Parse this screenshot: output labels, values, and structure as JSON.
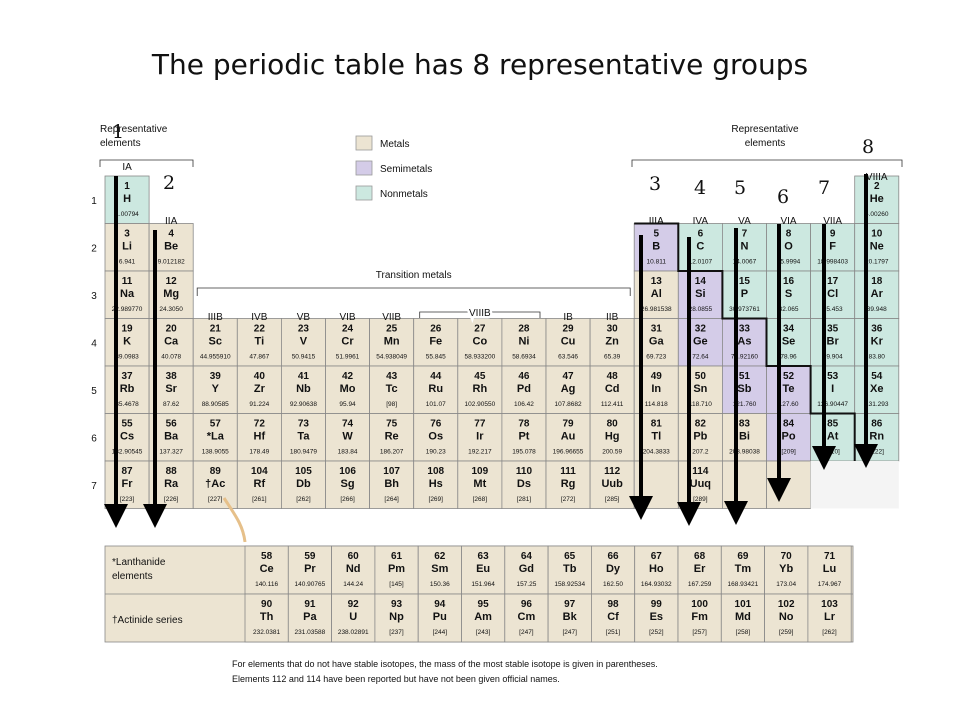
{
  "title": "The periodic table has 8 representative groups",
  "rep_elements_label_left": [
    "Representative",
    "elements"
  ],
  "rep_elements_label_right": [
    "Representative",
    "elements"
  ],
  "transition_metals_label": "Transition metals",
  "legend": [
    {
      "label": "Metals",
      "color": "#ece4d2"
    },
    {
      "label": "Semimetals",
      "color": "#d4cce8"
    },
    {
      "label": "Nonmetals",
      "color": "#cce8e0"
    }
  ],
  "group_headers": {
    "IA": "IA",
    "IIA": "IIA",
    "IIIA": "IIIA",
    "IVA": "IVA",
    "VA": "VA",
    "VIA": "VIA",
    "VIIA": "VIIA",
    "VIIIA": "VIIIA",
    "IIIB": "IIIB",
    "IVB": "IVB",
    "VB": "VB",
    "VIB": "VIB",
    "VIIB": "VIIB",
    "VIIIB": "VIIIB",
    "IB": "IB",
    "IIB": "IIB"
  },
  "period_labels": [
    "1",
    "2",
    "3",
    "4",
    "5",
    "6",
    "7"
  ],
  "group_markers": [
    "1",
    "2",
    "3",
    "4",
    "5",
    "6",
    "7",
    "8"
  ],
  "elements": [
    {
      "n": "1",
      "s": "H",
      "m": "1.00794",
      "c": "non"
    },
    {
      "n": "2",
      "s": "He",
      "m": "4.00260",
      "c": "non"
    },
    {
      "n": "3",
      "s": "Li",
      "m": "6.941",
      "c": "met"
    },
    {
      "n": "4",
      "s": "Be",
      "m": "9.012182",
      "c": "met"
    },
    {
      "n": "5",
      "s": "B",
      "m": "10.811",
      "c": "semi"
    },
    {
      "n": "6",
      "s": "C",
      "m": "12.0107",
      "c": "non"
    },
    {
      "n": "7",
      "s": "N",
      "m": "14.0067",
      "c": "non"
    },
    {
      "n": "8",
      "s": "O",
      "m": "15.9994",
      "c": "non"
    },
    {
      "n": "9",
      "s": "F",
      "m": "18.998403",
      "c": "non"
    },
    {
      "n": "10",
      "s": "Ne",
      "m": "20.1797",
      "c": "non"
    },
    {
      "n": "11",
      "s": "Na",
      "m": "22.989770",
      "c": "met"
    },
    {
      "n": "12",
      "s": "Mg",
      "m": "24.3050",
      "c": "met"
    },
    {
      "n": "13",
      "s": "Al",
      "m": "26.981538",
      "c": "met"
    },
    {
      "n": "14",
      "s": "Si",
      "m": "28.0855",
      "c": "semi"
    },
    {
      "n": "15",
      "s": "P",
      "m": "30.973761",
      "c": "non"
    },
    {
      "n": "16",
      "s": "S",
      "m": "32.065",
      "c": "non"
    },
    {
      "n": "17",
      "s": "Cl",
      "m": "35.453",
      "c": "non"
    },
    {
      "n": "18",
      "s": "Ar",
      "m": "39.948",
      "c": "non"
    },
    {
      "n": "19",
      "s": "K",
      "m": "39.0983",
      "c": "met"
    },
    {
      "n": "20",
      "s": "Ca",
      "m": "40.078",
      "c": "met"
    },
    {
      "n": "21",
      "s": "Sc",
      "m": "44.955910",
      "c": "met"
    },
    {
      "n": "22",
      "s": "Ti",
      "m": "47.867",
      "c": "met"
    },
    {
      "n": "23",
      "s": "V",
      "m": "50.9415",
      "c": "met"
    },
    {
      "n": "24",
      "s": "Cr",
      "m": "51.9961",
      "c": "met"
    },
    {
      "n": "25",
      "s": "Mn",
      "m": "54.938049",
      "c": "met"
    },
    {
      "n": "26",
      "s": "Fe",
      "m": "55.845",
      "c": "met"
    },
    {
      "n": "27",
      "s": "Co",
      "m": "58.933200",
      "c": "met"
    },
    {
      "n": "28",
      "s": "Ni",
      "m": "58.6934",
      "c": "met"
    },
    {
      "n": "29",
      "s": "Cu",
      "m": "63.546",
      "c": "met"
    },
    {
      "n": "30",
      "s": "Zn",
      "m": "65.39",
      "c": "met"
    },
    {
      "n": "31",
      "s": "Ga",
      "m": "69.723",
      "c": "met"
    },
    {
      "n": "32",
      "s": "Ge",
      "m": "72.64",
      "c": "semi"
    },
    {
      "n": "33",
      "s": "As",
      "m": "74.92160",
      "c": "semi"
    },
    {
      "n": "34",
      "s": "Se",
      "m": "78.96",
      "c": "non"
    },
    {
      "n": "35",
      "s": "Br",
      "m": "79.904",
      "c": "non"
    },
    {
      "n": "36",
      "s": "Kr",
      "m": "83.80",
      "c": "non"
    },
    {
      "n": "37",
      "s": "Rb",
      "m": "85.4678",
      "c": "met"
    },
    {
      "n": "38",
      "s": "Sr",
      "m": "87.62",
      "c": "met"
    },
    {
      "n": "39",
      "s": "Y",
      "m": "88.90585",
      "c": "met"
    },
    {
      "n": "40",
      "s": "Zr",
      "m": "91.224",
      "c": "met"
    },
    {
      "n": "41",
      "s": "Nb",
      "m": "92.90638",
      "c": "met"
    },
    {
      "n": "42",
      "s": "Mo",
      "m": "95.94",
      "c": "met"
    },
    {
      "n": "43",
      "s": "Tc",
      "m": "[98]",
      "c": "met"
    },
    {
      "n": "44",
      "s": "Ru",
      "m": "101.07",
      "c": "met"
    },
    {
      "n": "45",
      "s": "Rh",
      "m": "102.90550",
      "c": "met"
    },
    {
      "n": "46",
      "s": "Pd",
      "m": "106.42",
      "c": "met"
    },
    {
      "n": "47",
      "s": "Ag",
      "m": "107.8682",
      "c": "met"
    },
    {
      "n": "48",
      "s": "Cd",
      "m": "112.411",
      "c": "met"
    },
    {
      "n": "49",
      "s": "In",
      "m": "114.818",
      "c": "met"
    },
    {
      "n": "50",
      "s": "Sn",
      "m": "118.710",
      "c": "met"
    },
    {
      "n": "51",
      "s": "Sb",
      "m": "121.760",
      "c": "semi"
    },
    {
      "n": "52",
      "s": "Te",
      "m": "127.60",
      "c": "semi"
    },
    {
      "n": "53",
      "s": "I",
      "m": "126.90447",
      "c": "non"
    },
    {
      "n": "54",
      "s": "Xe",
      "m": "131.293",
      "c": "non"
    },
    {
      "n": "55",
      "s": "Cs",
      "m": "132.90545",
      "c": "met"
    },
    {
      "n": "56",
      "s": "Ba",
      "m": "137.327",
      "c": "met"
    },
    {
      "n": "57",
      "s": "*La",
      "m": "138.9055",
      "c": "met"
    },
    {
      "n": "72",
      "s": "Hf",
      "m": "178.49",
      "c": "met"
    },
    {
      "n": "73",
      "s": "Ta",
      "m": "180.9479",
      "c": "met"
    },
    {
      "n": "74",
      "s": "W",
      "m": "183.84",
      "c": "met"
    },
    {
      "n": "75",
      "s": "Re",
      "m": "186.207",
      "c": "met"
    },
    {
      "n": "76",
      "s": "Os",
      "m": "190.23",
      "c": "met"
    },
    {
      "n": "77",
      "s": "Ir",
      "m": "192.217",
      "c": "met"
    },
    {
      "n": "78",
      "s": "Pt",
      "m": "195.078",
      "c": "met"
    },
    {
      "n": "79",
      "s": "Au",
      "m": "196.96655",
      "c": "met"
    },
    {
      "n": "80",
      "s": "Hg",
      "m": "200.59",
      "c": "met"
    },
    {
      "n": "81",
      "s": "Tl",
      "m": "204.3833",
      "c": "met"
    },
    {
      "n": "82",
      "s": "Pb",
      "m": "207.2",
      "c": "met"
    },
    {
      "n": "83",
      "s": "Bi",
      "m": "208.98038",
      "c": "met"
    },
    {
      "n": "84",
      "s": "Po",
      "m": "[209]",
      "c": "semi"
    },
    {
      "n": "85",
      "s": "At",
      "m": "[210]",
      "c": "non"
    },
    {
      "n": "86",
      "s": "Rn",
      "m": "[222]",
      "c": "non"
    },
    {
      "n": "87",
      "s": "Fr",
      "m": "[223]",
      "c": "met"
    },
    {
      "n": "88",
      "s": "Ra",
      "m": "[226]",
      "c": "met"
    },
    {
      "n": "89",
      "s": "†Ac",
      "m": "[227]",
      "c": "met"
    },
    {
      "n": "104",
      "s": "Rf",
      "m": "[261]",
      "c": "met"
    },
    {
      "n": "105",
      "s": "Db",
      "m": "[262]",
      "c": "met"
    },
    {
      "n": "106",
      "s": "Sg",
      "m": "[266]",
      "c": "met"
    },
    {
      "n": "107",
      "s": "Bh",
      "m": "[264]",
      "c": "met"
    },
    {
      "n": "108",
      "s": "Hs",
      "m": "[269]",
      "c": "met"
    },
    {
      "n": "109",
      "s": "Mt",
      "m": "[268]",
      "c": "met"
    },
    {
      "n": "110",
      "s": "Ds",
      "m": "[281]",
      "c": "met"
    },
    {
      "n": "111",
      "s": "Rg",
      "m": "[272]",
      "c": "met"
    },
    {
      "n": "112",
      "s": "Uub",
      "m": "[285]",
      "c": "met"
    },
    {
      "n": "114",
      "s": "Uuq",
      "m": "[289]",
      "c": "met"
    }
  ],
  "lanthanide_label": [
    "*Lanthanide",
    "elements"
  ],
  "actinide_label": "†Actinide series",
  "lanthanides": [
    {
      "n": "58",
      "s": "Ce",
      "m": "140.116"
    },
    {
      "n": "59",
      "s": "Pr",
      "m": "140.90765"
    },
    {
      "n": "60",
      "s": "Nd",
      "m": "144.24"
    },
    {
      "n": "61",
      "s": "Pm",
      "m": "[145]"
    },
    {
      "n": "62",
      "s": "Sm",
      "m": "150.36"
    },
    {
      "n": "63",
      "s": "Eu",
      "m": "151.964"
    },
    {
      "n": "64",
      "s": "Gd",
      "m": "157.25"
    },
    {
      "n": "65",
      "s": "Tb",
      "m": "158.92534"
    },
    {
      "n": "66",
      "s": "Dy",
      "m": "162.50"
    },
    {
      "n": "67",
      "s": "Ho",
      "m": "164.93032"
    },
    {
      "n": "68",
      "s": "Er",
      "m": "167.259"
    },
    {
      "n": "69",
      "s": "Tm",
      "m": "168.93421"
    },
    {
      "n": "70",
      "s": "Yb",
      "m": "173.04"
    },
    {
      "n": "71",
      "s": "Lu",
      "m": "174.967"
    }
  ],
  "actinides": [
    {
      "n": "90",
      "s": "Th",
      "m": "232.0381"
    },
    {
      "n": "91",
      "s": "Pa",
      "m": "231.03588"
    },
    {
      "n": "92",
      "s": "U",
      "m": "238.02891"
    },
    {
      "n": "93",
      "s": "Np",
      "m": "[237]"
    },
    {
      "n": "94",
      "s": "Pu",
      "m": "[244]"
    },
    {
      "n": "95",
      "s": "Am",
      "m": "[243]"
    },
    {
      "n": "96",
      "s": "Cm",
      "m": "[247]"
    },
    {
      "n": "97",
      "s": "Bk",
      "m": "[247]"
    },
    {
      "n": "98",
      "s": "Cf",
      "m": "[251]"
    },
    {
      "n": "99",
      "s": "Es",
      "m": "[252]"
    },
    {
      "n": "100",
      "s": "Fm",
      "m": "[257]"
    },
    {
      "n": "101",
      "s": "Md",
      "m": "[258]"
    },
    {
      "n": "102",
      "s": "No",
      "m": "[259]"
    },
    {
      "n": "103",
      "s": "Lr",
      "m": "[262]"
    }
  ],
  "footnote": [
    "For elements that do not have stable isotopes, the mass of the most stable isotope is given in parentheses.",
    "Elements 112 and 114 have been reported but have not been given official names."
  ]
}
